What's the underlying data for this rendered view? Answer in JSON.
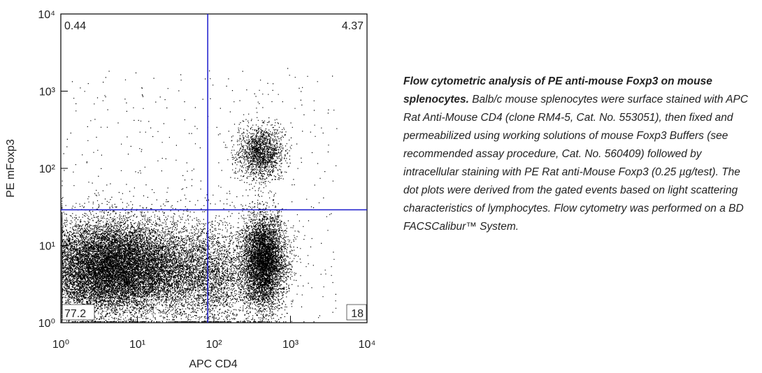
{
  "chart_data": {
    "type": "flow-dot-plot",
    "x_label": "APC CD4",
    "y_label": "PE mFoxp3",
    "log_scale": true,
    "xlim": [
      1,
      10000
    ],
    "ylim": [
      1,
      10000
    ],
    "xticks": [
      {
        "value": 1,
        "label": "10⁰"
      },
      {
        "value": 10,
        "label": "10¹"
      },
      {
        "value": 100,
        "label": "10²"
      },
      {
        "value": 1000,
        "label": "10³"
      },
      {
        "value": 10000,
        "label": "10⁴"
      }
    ],
    "yticks": [
      {
        "value": 1,
        "label": "10⁰"
      },
      {
        "value": 10,
        "label": "10¹"
      },
      {
        "value": 100,
        "label": "10²"
      },
      {
        "value": 1000,
        "label": "10³"
      },
      {
        "value": 10000,
        "label": "10⁴"
      }
    ],
    "gate_x": 83,
    "gate_y": 29,
    "gate_color": "#1a1acc",
    "quadrant_values": [
      0.44,
      4.37,
      77.2,
      18
    ]
  },
  "caption": {
    "bold": "Flow cytometric analysis of PE anti-mouse Foxp3 on mouse splenocytes.",
    "text": "Balb/c mouse splenocytes were surface stained with APC Rat Anti-Mouse CD4 (clone RM4-5, Cat. No. 553051), then fixed and permeabilized using working solutions of mouse Foxp3 Buffers (see recommended assay procedure, Cat. No. 560409) followed by intracellular staining with PE Rat anti-Mouse Foxp3 (0.25 µg/test). The dot plots were derived from the gated events based on light scattering characteristics of lymphocytes. Flow cytometry was performed on a BD FACSCalibur™ System."
  }
}
